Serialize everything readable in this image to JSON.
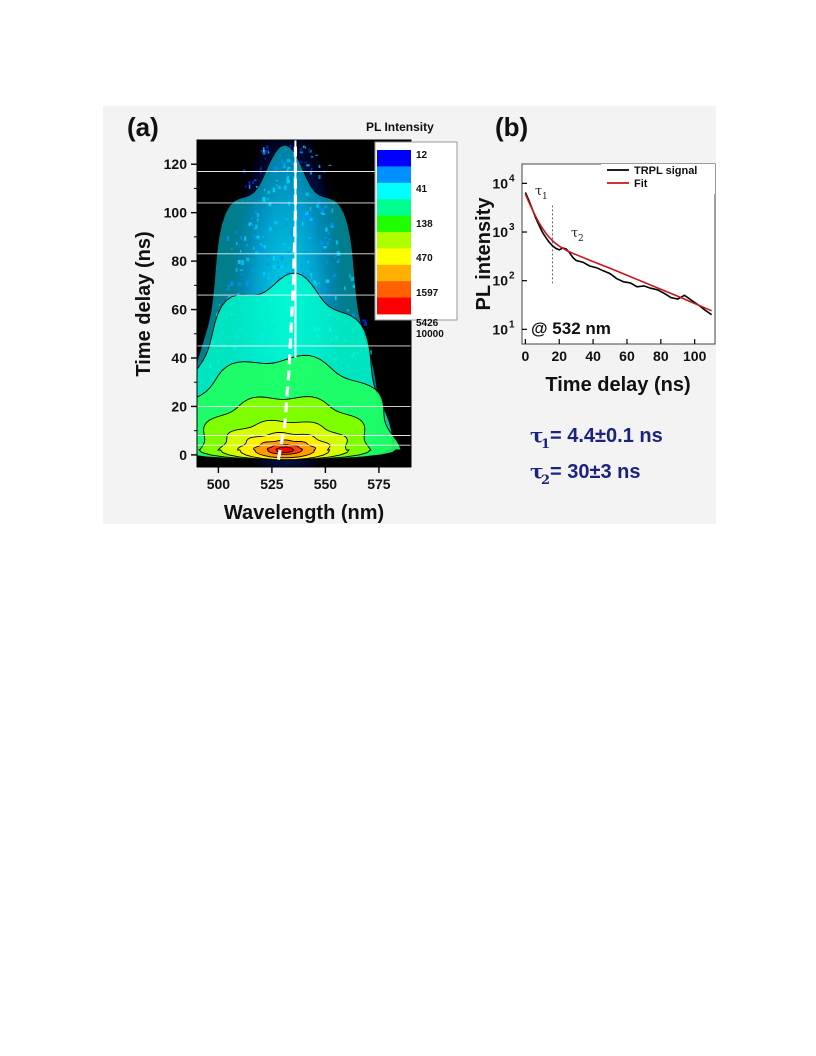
{
  "chart_data": [
    {
      "panel": "(a)",
      "type": "heatmap",
      "xlabel": "Wavelength (nm)",
      "ylabel": "Time delay (ns)",
      "xlim": [
        490,
        590
      ],
      "ylim": [
        -5,
        130
      ],
      "xticks": [
        500,
        525,
        550,
        575
      ],
      "yticks": [
        0,
        20,
        40,
        60,
        80,
        100,
        120
      ],
      "colorbar": {
        "title": "PL Intensity",
        "scale": "log",
        "levels": [
          "12",
          "41",
          "138",
          "470",
          "1597",
          "5426",
          "10000"
        ],
        "colors": [
          "#0000ff",
          "#0090ff",
          "#00ffff",
          "#00ff90",
          "#20ff00",
          "#b0ff00",
          "#ffff00",
          "#ffb000",
          "#ff6000",
          "#ff0000"
        ]
      },
      "peak": {
        "wavelength": 530,
        "time": 2,
        "intensity": 10000
      },
      "peak_shift_line": [
        [
          528,
          -2
        ],
        [
          531,
          12
        ],
        [
          533,
          35
        ],
        [
          535,
          70
        ],
        [
          536,
          100
        ],
        [
          536,
          128
        ]
      ],
      "colors": {
        "background": "#000000",
        "dashed_line": "#ffffff"
      }
    },
    {
      "panel": "(b)",
      "type": "line",
      "xlabel": "Time delay (ns)",
      "ylabel": "PL intensity",
      "yscale": "log",
      "xlim": [
        -2,
        112
      ],
      "ylim": [
        5,
        25000
      ],
      "xticks": [
        0,
        20,
        40,
        60,
        80,
        100
      ],
      "yticks": [
        {
          "value": 10,
          "label": "10",
          "exp": "1"
        },
        {
          "value": 100,
          "label": "10",
          "exp": "2"
        },
        {
          "value": 1000,
          "label": "10",
          "exp": "3"
        },
        {
          "value": 10000,
          "label": "10",
          "exp": "4"
        }
      ],
      "legend_position": "top-right",
      "series": [
        {
          "name": "TRPL signal",
          "color": "#000000",
          "x": [
            0,
            2,
            4,
            6,
            8,
            10,
            12,
            14,
            16,
            18,
            20,
            22,
            24,
            26,
            28,
            30,
            34,
            38,
            42,
            46,
            50,
            54,
            58,
            62,
            66,
            70,
            74,
            78,
            82,
            86,
            90,
            94,
            98,
            102,
            106,
            110
          ],
          "y": [
            6500,
            4500,
            3000,
            2000,
            1400,
            1000,
            780,
            620,
            520,
            460,
            430,
            470,
            450,
            380,
            300,
            260,
            240,
            200,
            185,
            160,
            140,
            110,
            95,
            90,
            75,
            78,
            70,
            65,
            55,
            45,
            42,
            50,
            40,
            32,
            25,
            20
          ]
        },
        {
          "name": "Fit",
          "color": "#c8161d",
          "x": [
            0,
            2,
            4,
            6,
            8,
            10,
            12,
            14,
            16,
            18,
            20,
            25,
            30,
            40,
            50,
            60,
            70,
            80,
            90,
            100,
            110
          ],
          "y": [
            6000,
            4160,
            2940,
            2120,
            1570,
            1205,
            955,
            783,
            662,
            575,
            513,
            405,
            342,
            247,
            180,
            129,
            93,
            67,
            48,
            34,
            24
          ]
        }
      ],
      "annotations": {
        "tau1": {
          "symbol": "τ",
          "sub": "1"
        },
        "tau2": {
          "symbol": "τ",
          "sub": "2"
        },
        "divider_x": 16,
        "excitation": "@ 532 nm"
      }
    }
  ],
  "results": [
    {
      "symbol": "τ",
      "sub": "1",
      "text": "= 4.4±0.1 ns"
    },
    {
      "symbol": "τ",
      "sub": "2",
      "text": "= 30±3 ns"
    }
  ]
}
